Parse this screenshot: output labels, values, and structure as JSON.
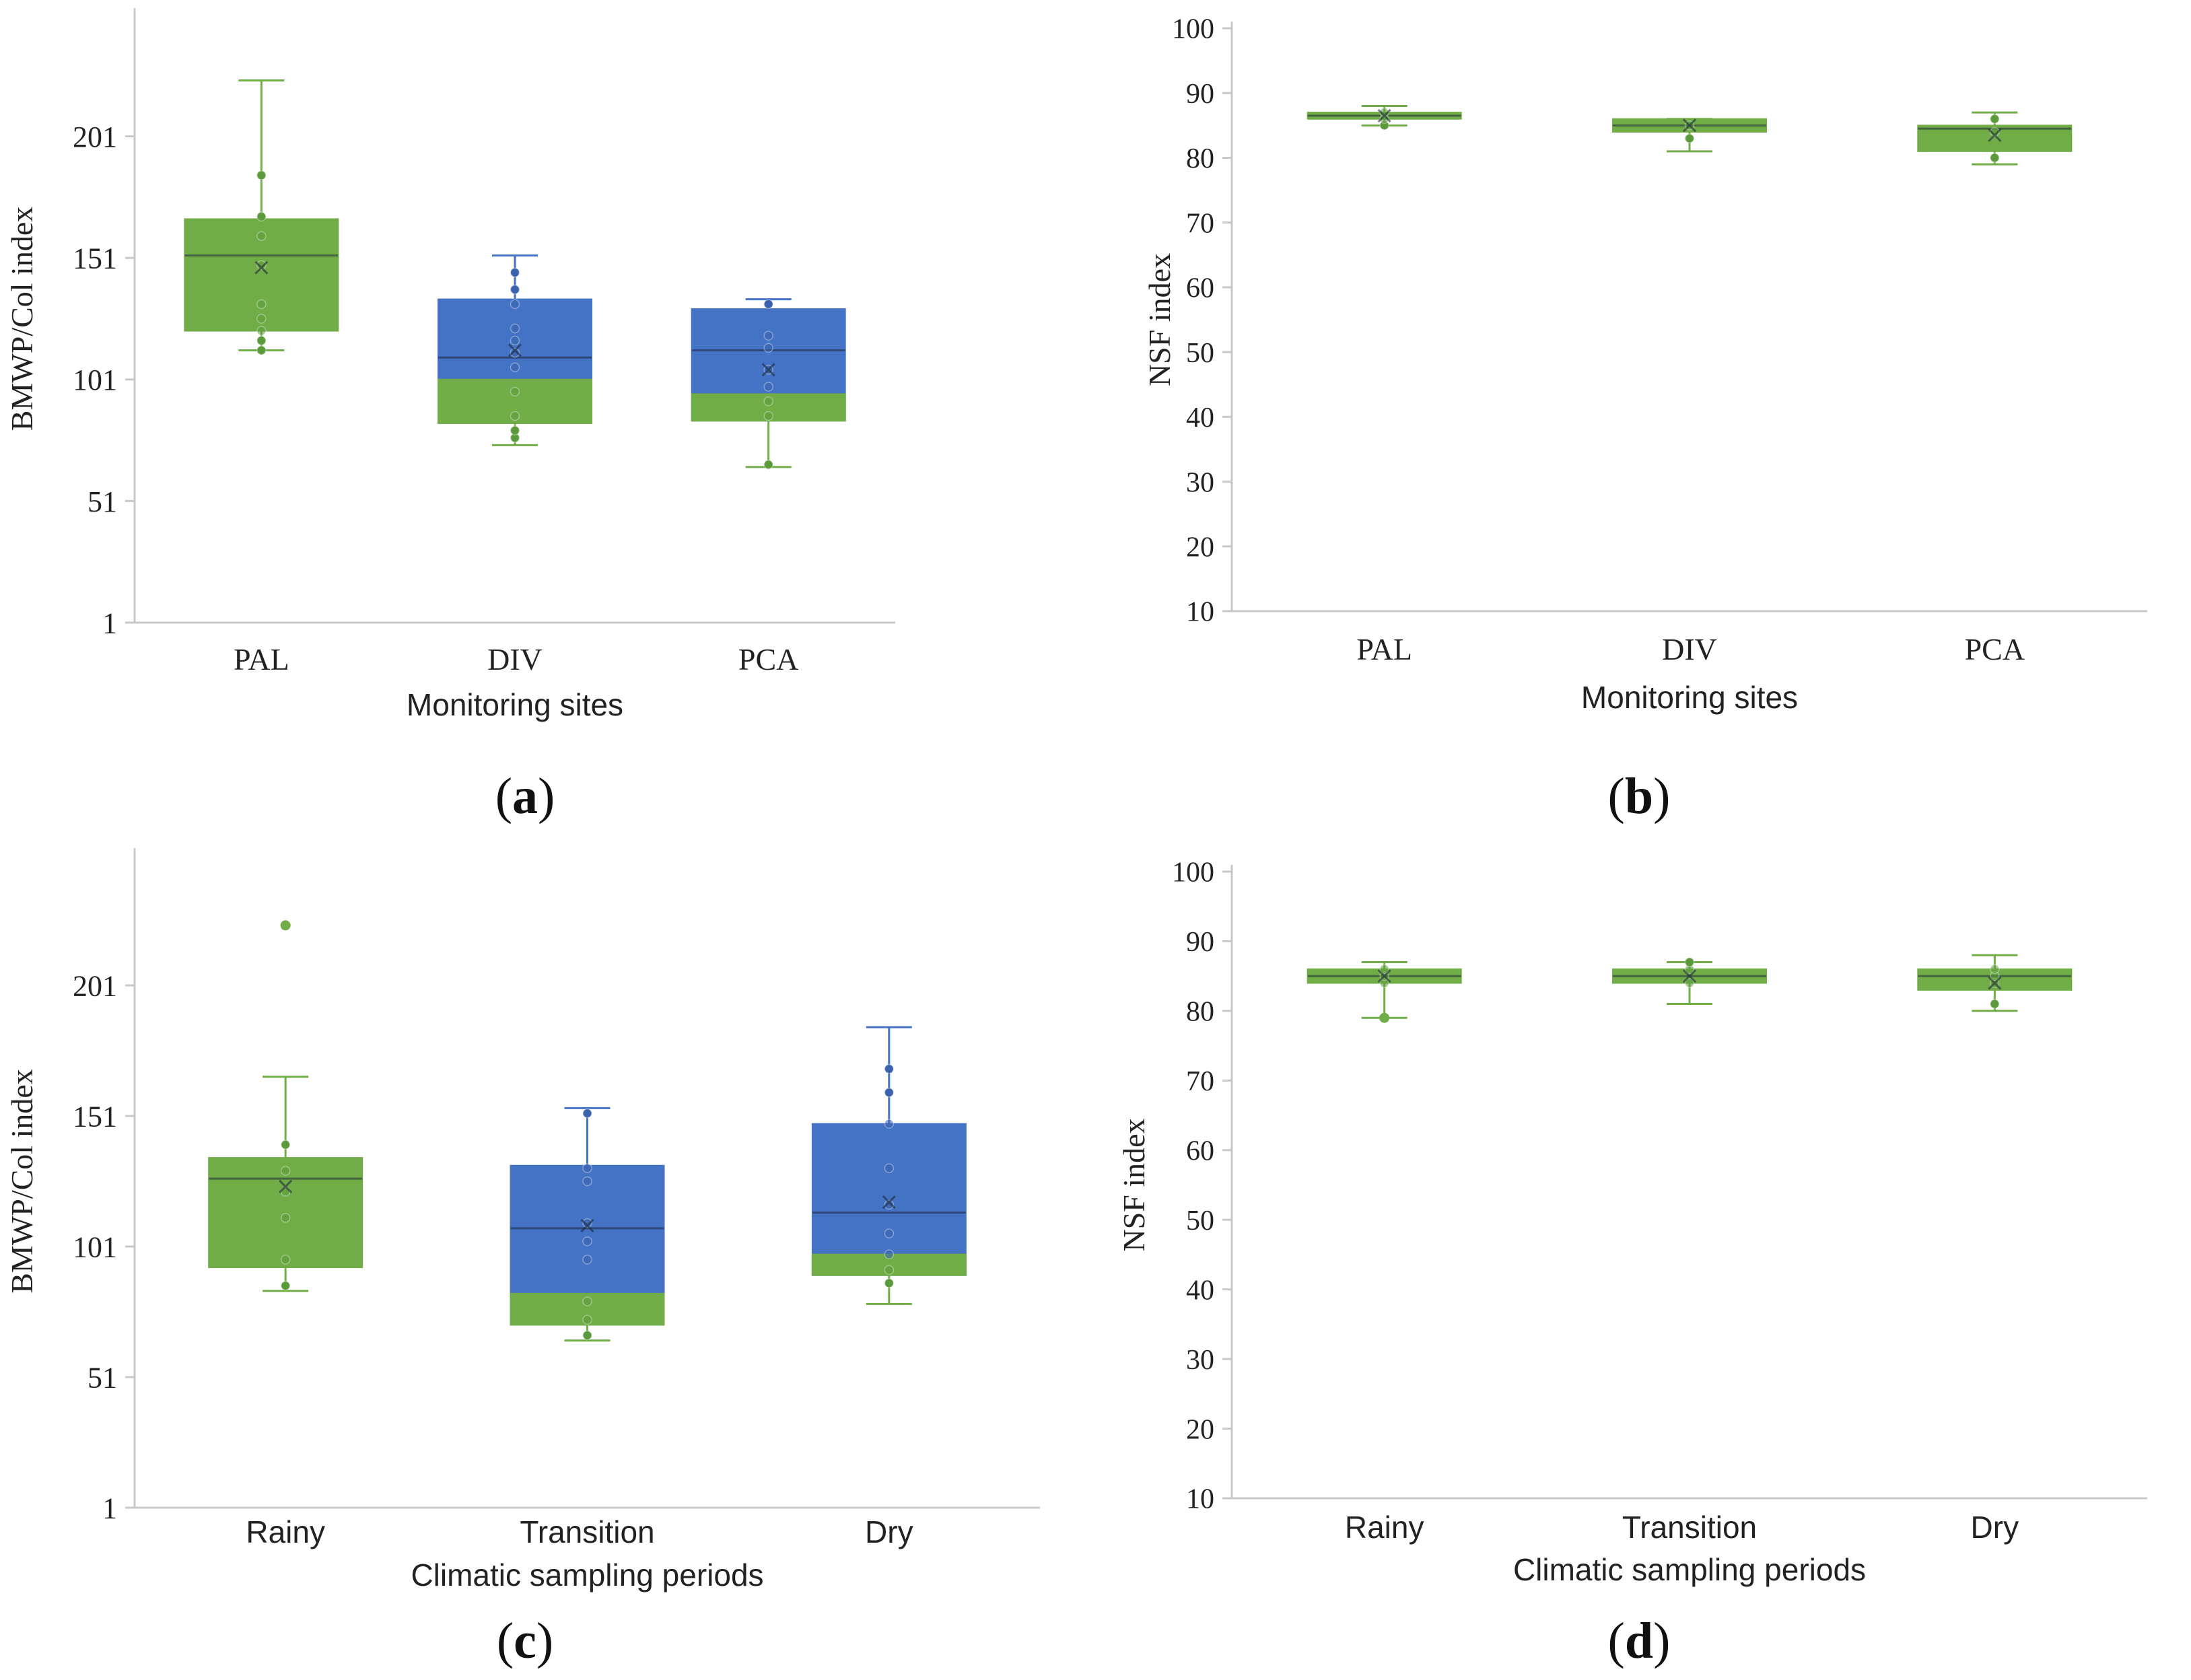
{
  "colors": {
    "green": "#70AD47",
    "blue": "#4472C4",
    "axis": "#c8c8c8",
    "text": "#222222"
  },
  "panel_labels": [
    "a",
    "b",
    "c",
    "d"
  ],
  "chart_data": [
    {
      "id": "a",
      "type": "box",
      "xlabel": "Monitoring sites",
      "ylabel": "BMWP/Col index",
      "ylim": [
        1,
        251
      ],
      "yticks": [
        1,
        51,
        101,
        151,
        201
      ],
      "categories": [
        "PAL",
        "DIV",
        "PCA"
      ],
      "boxes": [
        {
          "category": "PAL",
          "min": 113,
          "q1": 121,
          "median": 152,
          "q3": 167,
          "max": 224,
          "mean": 147,
          "split": null,
          "points": [
            113,
            117,
            121,
            126,
            132,
            148,
            160,
            168,
            185
          ]
        },
        {
          "category": "DIV",
          "min": 74,
          "q1": 83,
          "median": 110,
          "q3": 134,
          "max": 152,
          "mean": 113,
          "split": 101,
          "points": [
            77,
            80,
            86,
            96,
            106,
            112,
            117,
            122,
            132,
            138,
            145
          ]
        },
        {
          "category": "PCA",
          "min": 65,
          "q1": 84,
          "median": 113,
          "q3": 130,
          "max": 134,
          "mean": 105,
          "split": 95,
          "points": [
            66,
            86,
            92,
            98,
            105,
            114,
            119,
            132
          ]
        }
      ]
    },
    {
      "id": "b",
      "type": "box",
      "xlabel": "Monitoring sites",
      "ylabel": "NSF index",
      "ylim": [
        10,
        100
      ],
      "yticks": [
        10,
        20,
        30,
        40,
        50,
        60,
        70,
        80,
        90,
        100
      ],
      "categories": [
        "PAL",
        "DIV",
        "PCA"
      ],
      "boxes": [
        {
          "category": "PAL",
          "min": 85,
          "q1": 86,
          "median": 86.5,
          "q3": 87,
          "max": 88,
          "mean": 86.5,
          "split": null,
          "points": [
            85,
            86,
            87
          ]
        },
        {
          "category": "DIV",
          "min": 81,
          "q1": 84,
          "median": 85,
          "q3": 86,
          "max": 86,
          "mean": 85,
          "split": null,
          "points": [
            83,
            85
          ]
        },
        {
          "category": "PCA",
          "min": 79,
          "q1": 81,
          "median": 84.5,
          "q3": 85,
          "max": 87,
          "mean": 83.5,
          "split": null,
          "points": [
            80,
            84,
            86
          ]
        }
      ]
    },
    {
      "id": "c",
      "type": "box",
      "xlabel": "Climatic sampling periods",
      "ylabel": "BMWP/Col index",
      "ylim": [
        1,
        251
      ],
      "yticks": [
        1,
        51,
        101,
        151,
        201
      ],
      "categories": [
        "Rainy",
        "Transition",
        "Dry"
      ],
      "boxes": [
        {
          "category": "Rainy",
          "min": 84,
          "q1": 93,
          "median": 127,
          "q3": 135,
          "max": 166,
          "mean": 124,
          "split": null,
          "outliers": [
            224
          ],
          "points": [
            86,
            96,
            112,
            122,
            130,
            140
          ]
        },
        {
          "category": "Transition",
          "min": 65,
          "q1": 71,
          "median": 108,
          "q3": 132,
          "max": 154,
          "mean": 109,
          "split": 83,
          "points": [
            67,
            73,
            80,
            96,
            103,
            110,
            126,
            131,
            152
          ]
        },
        {
          "category": "Dry",
          "min": 79,
          "q1": 90,
          "median": 114,
          "q3": 148,
          "max": 185,
          "mean": 118,
          "split": 98,
          "points": [
            87,
            92,
            98,
            106,
            117,
            131,
            148,
            160,
            169
          ]
        }
      ]
    },
    {
      "id": "d",
      "type": "box",
      "xlabel": "Climatic sampling periods",
      "ylabel": "NSF index",
      "ylim": [
        10,
        100
      ],
      "yticks": [
        10,
        20,
        30,
        40,
        50,
        60,
        70,
        80,
        90,
        100
      ],
      "categories": [
        "Rainy",
        "Transition",
        "Dry"
      ],
      "boxes": [
        {
          "category": "Rainy",
          "min": 79,
          "q1": 84,
          "median": 85,
          "q3": 86,
          "max": 87,
          "mean": 85,
          "split": null,
          "outliers": [
            79
          ],
          "points": [
            84,
            85,
            86
          ]
        },
        {
          "category": "Transition",
          "min": 81,
          "q1": 84,
          "median": 85,
          "q3": 86,
          "max": 87,
          "mean": 85,
          "split": null,
          "points": [
            84,
            86,
            87
          ]
        },
        {
          "category": "Dry",
          "min": 80,
          "q1": 83,
          "median": 85,
          "q3": 86,
          "max": 88,
          "mean": 84,
          "split": null,
          "points": [
            81,
            84,
            85,
            86
          ]
        }
      ]
    }
  ]
}
